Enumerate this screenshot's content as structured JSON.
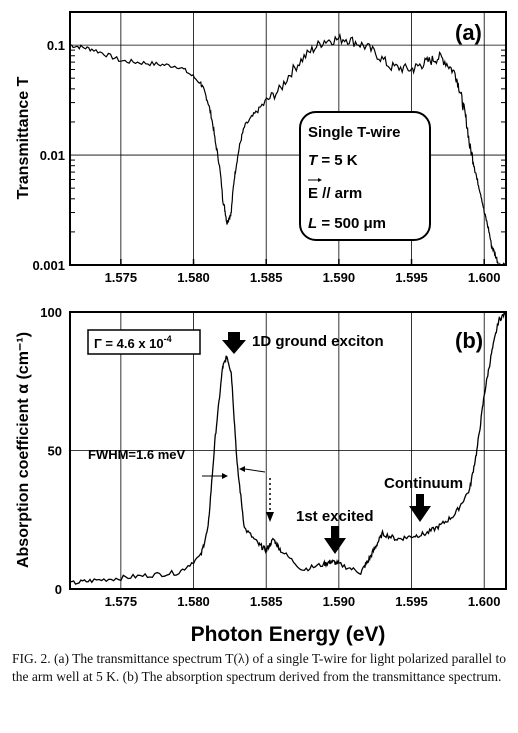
{
  "chart_data": [
    {
      "type": "line",
      "panel_label": "(a)",
      "ylabel": "Transmittance T",
      "yscale": "log",
      "ylim": [
        0.001,
        0.2
      ],
      "xlim": [
        1.5715,
        1.6015
      ],
      "x_ticks": [
        "1.575",
        "1.580",
        "1.585",
        "1.590",
        "1.595",
        "1.600"
      ],
      "y_ticks": [
        "0.001",
        "0.01",
        "0.1"
      ],
      "grid": true,
      "inset": {
        "line1": "Single T-wire",
        "line2_var": "T",
        "line2_rest": " = 5 K",
        "line3_var": "E",
        "line3_rest": " // arm",
        "line4_var": "L",
        "line4_rest": " = 500 μm"
      },
      "series": [
        {
          "x": [
            1.5715,
            1.573,
            1.575,
            1.577,
            1.579,
            1.5805,
            1.581,
            1.5815,
            1.582,
            1.5823,
            1.5826,
            1.583,
            1.5835,
            1.5845,
            1.586,
            1.5875,
            1.589,
            1.5905,
            1.592,
            1.5935,
            1.595,
            1.596,
            1.597,
            1.598,
            1.5985,
            1.599,
            1.5995,
            1.6,
            1.6005,
            1.601,
            1.6015
          ],
          "y": [
            0.1,
            0.092,
            0.072,
            0.068,
            0.064,
            0.045,
            0.03,
            0.013,
            0.004,
            0.0024,
            0.003,
            0.009,
            0.018,
            0.026,
            0.04,
            0.075,
            0.11,
            0.115,
            0.095,
            0.064,
            0.06,
            0.07,
            0.078,
            0.055,
            0.03,
            0.012,
            0.006,
            0.003,
            0.0015,
            0.001,
            0.001
          ]
        }
      ]
    },
    {
      "type": "line",
      "panel_label": "(b)",
      "ylabel": "Absorption coefficient α (cm⁻¹)",
      "xlabel": "Photon Energy (eV)",
      "ylim": [
        0,
        100
      ],
      "xlim": [
        1.5715,
        1.6015
      ],
      "x_ticks": [
        "1.575",
        "1.580",
        "1.585",
        "1.590",
        "1.595",
        "1.600"
      ],
      "y_ticks": [
        "0",
        "50",
        "100"
      ],
      "grid": true,
      "gamma_label": "Γ = 4.6 x 10",
      "gamma_exp": "-4",
      "annotations": {
        "ground": "1D ground exciton",
        "fwhm": "FWHM=1.6 meV",
        "excited": "1st excited",
        "continuum": "Continuum"
      },
      "series": [
        {
          "x": [
            1.5715,
            1.573,
            1.575,
            1.577,
            1.579,
            1.5805,
            1.581,
            1.5815,
            1.582,
            1.5823,
            1.5826,
            1.583,
            1.5835,
            1.5845,
            1.585,
            1.5855,
            1.586,
            1.5875,
            1.589,
            1.5895,
            1.59,
            1.5915,
            1.592,
            1.5925,
            1.593,
            1.594,
            1.595,
            1.596,
            1.597,
            1.598,
            1.599,
            1.5995,
            1.6,
            1.6005,
            1.601,
            1.6015
          ],
          "y": [
            2,
            3,
            4,
            5,
            6,
            12,
            22,
            55,
            80,
            84,
            78,
            45,
            22,
            16,
            14,
            18,
            14,
            7,
            9,
            10,
            9,
            6,
            10,
            15,
            20,
            18,
            19,
            20,
            23,
            27,
            36,
            50,
            70,
            85,
            97,
            100
          ]
        }
      ]
    }
  ],
  "caption": "FIG. 2. (a) The transmittance spectrum T(λ) of a single T-wire for light polarized parallel to the arm well at 5 K. (b) The absorption spectrum derived from the transmittance spectrum."
}
